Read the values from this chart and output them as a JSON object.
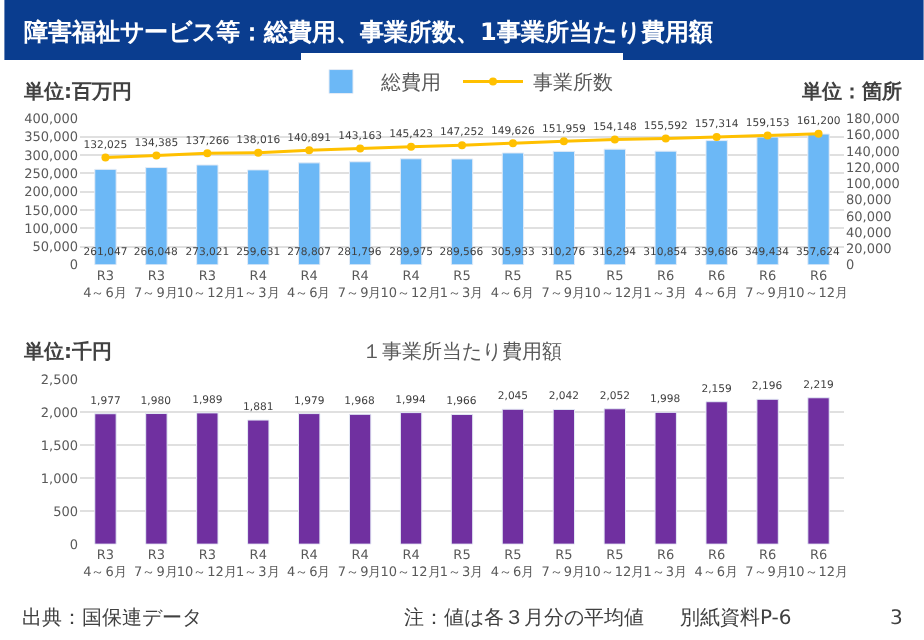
{
  "chart_data": [
    {
      "type": "bar",
      "title": "障害福祉サービス等：総費用、事業所数、1事業所当たり費用額",
      "ylabel": "単位:百万円",
      "y2label": "単位：箇所",
      "categories": [
        "R3 4～6月",
        "R3 7～9月",
        "R3 10～12月",
        "R4 1～3月",
        "R4 4～6月",
        "R4 7～9月",
        "R4 10～12月",
        "R5 1～3月",
        "R5 4～6月",
        "R5 7～9月",
        "R5 10～12月",
        "R6 1～3月",
        "R6 4～6月",
        "R6 7～9月",
        "R6 10～12月"
      ],
      "series": [
        {
          "name": "総費用",
          "type": "bar",
          "color": "#6cb8f6",
          "values": [
            261047,
            266048,
            273021,
            259631,
            278807,
            281796,
            289975,
            289566,
            305933,
            310276,
            316294,
            310854,
            339686,
            349434,
            357624
          ],
          "value_labels": [
            "261,047",
            "266,048",
            "273,021",
            "259,631",
            "278,807",
            "281,796",
            "289,975",
            "289,566",
            "305,933",
            "310,276",
            "316,294",
            "310,854",
            "339,686",
            "349,434",
            "357,624"
          ]
        },
        {
          "name": "事業所数",
          "type": "line",
          "axis": "y2",
          "color": "#ffc000",
          "marker": "circle",
          "values": [
            132025,
            134385,
            137266,
            138016,
            140891,
            143163,
            145423,
            147252,
            149626,
            151959,
            154148,
            155592,
            157314,
            159153,
            161200
          ],
          "value_labels": [
            "132,025",
            "134,385",
            "137,266",
            "138,016",
            "140,891",
            "143,163",
            "145,423",
            "147,252",
            "149,626",
            "151,959",
            "154,148",
            "155,592",
            "157,314",
            "159,153",
            "161,200"
          ]
        }
      ],
      "ylim": [
        0,
        400000
      ],
      "yticks": [
        0,
        {
          "value": 50000,
          "label": "50,000"
        },
        {
          "value": 100000,
          "label": "100,000"
        },
        {
          "value": 150000,
          "label": "150,000"
        },
        {
          "value": 200000,
          "label": "200,000"
        },
        {
          "value": 250000,
          "label": "250,000"
        },
        {
          "value": 300000,
          "label": "300,000"
        },
        {
          "value": 350000,
          "label": "350,000"
        },
        {
          "value": 400000,
          "label": "400,000"
        }
      ],
      "y2lim": [
        0,
        180000
      ],
      "y2ticks": [
        0,
        {
          "value": 20000,
          "label": "20,000"
        },
        {
          "value": 40000,
          "label": "40,000"
        },
        {
          "value": 60000,
          "label": "60,000"
        },
        {
          "value": 80000,
          "label": "80,000"
        },
        {
          "value": 100000,
          "label": "100,000"
        },
        {
          "value": 120000,
          "label": "120,000"
        },
        {
          "value": 140000,
          "label": "140,000"
        },
        {
          "value": 160000,
          "label": "160,000"
        },
        {
          "value": 180000,
          "label": "180,000"
        }
      ],
      "grid": "y",
      "legend": "top"
    },
    {
      "type": "bar",
      "title": "１事業所当たり費用額",
      "ylabel": "単位:千円",
      "categories": [
        "R3 4～6月",
        "R3 7～9月",
        "R3 10～12月",
        "R4 1～3月",
        "R4 4～6月",
        "R4 7～9月",
        "R4 10～12月",
        "R5 1～3月",
        "R5 4～6月",
        "R5 7～9月",
        "R5 10～12月",
        "R6 1～3月",
        "R6 4～6月",
        "R6 7～9月",
        "R6 10～12月"
      ],
      "series": [
        {
          "color": "#7030a0",
          "values": [
            1977,
            1980,
            1989,
            1881,
            1979,
            1968,
            1994,
            1966,
            2045,
            2042,
            2052,
            1998,
            2159,
            2196,
            2219
          ],
          "value_labels": [
            "1,977",
            "1,980",
            "1,989",
            "1,881",
            "1,979",
            "1,968",
            "1,994",
            "1,966",
            "2,045",
            "2,042",
            "2,052",
            "1,998",
            "2,159",
            "2,196",
            "2,219"
          ]
        }
      ],
      "ylim": [
        0,
        2500
      ],
      "yticks": [
        0,
        500,
        {
          "value": 1000,
          "label": "1,000"
        },
        {
          "value": 1500,
          "label": "1,500"
        },
        {
          "value": 2000,
          "label": "2,000"
        },
        {
          "value": 2500,
          "label": "2,500"
        }
      ],
      "grid": "y",
      "annotations": [
        "出典：国保連データ",
        "注：値は各３月分の平均値",
        "別紙資料P-6",
        "3"
      ]
    }
  ]
}
